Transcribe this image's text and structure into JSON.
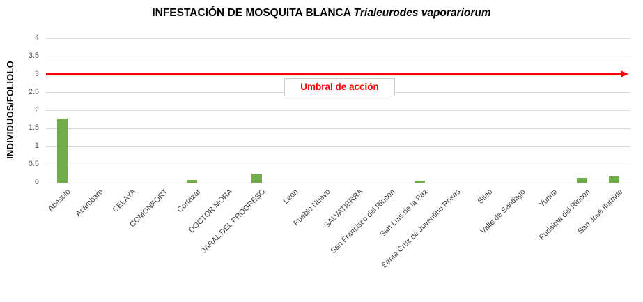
{
  "chart": {
    "title": {
      "main": "INFESTACIÓN DE MOSQUITA BLANCA",
      "italic": "Trialeurodes vaporariorum"
    },
    "ylabel": "INDIVIDUOS/FOLIOLO"
  },
  "chart_data": {
    "type": "bar",
    "title": "INFESTACIÓN DE MOSQUITA BLANCA Trialeurodes vaporariorum",
    "xlabel": "",
    "ylabel": "INDIVIDUOS/FOLIOLO",
    "ylim": [
      0,
      4
    ],
    "ytick_step": 0.5,
    "yticks": [
      "0",
      "0.5",
      "1",
      "1.5",
      "2",
      "2.5",
      "3",
      "3.5",
      "4"
    ],
    "grid": true,
    "legend": false,
    "categories": [
      "Abasolo",
      "Acambaro",
      "CELAYA",
      "COMONFORT",
      "Cortazar",
      "DOCTOR MORA",
      "JARAL DEL PROGRESO",
      "Leon",
      "Pueblo Nuevo",
      "SALVATIERRA",
      "San Francisco del Rincon",
      "San Luis de la Paz",
      "Santa Cruz de Juventino Rosas",
      "Silao",
      "Valle de Santiago",
      "Yuriria",
      "Purisima del Rincon",
      "San José Iturbide"
    ],
    "values": [
      1.77,
      0,
      0,
      0,
      0.08,
      0,
      0.24,
      0,
      0,
      0,
      0,
      0.05,
      0,
      0,
      0,
      0,
      0.13,
      0.17
    ],
    "threshold": {
      "value": 3,
      "label": "Umbral de acción"
    },
    "bar_color": "#70ad47"
  },
  "colors": {
    "bar": "#70ad47",
    "threshold": "#ff0000",
    "gridline": "#d9d9d9",
    "ytick_text": "#595959",
    "xlabel_text": "#3f3f3f",
    "umbral_border": "#cfcdcd"
  }
}
